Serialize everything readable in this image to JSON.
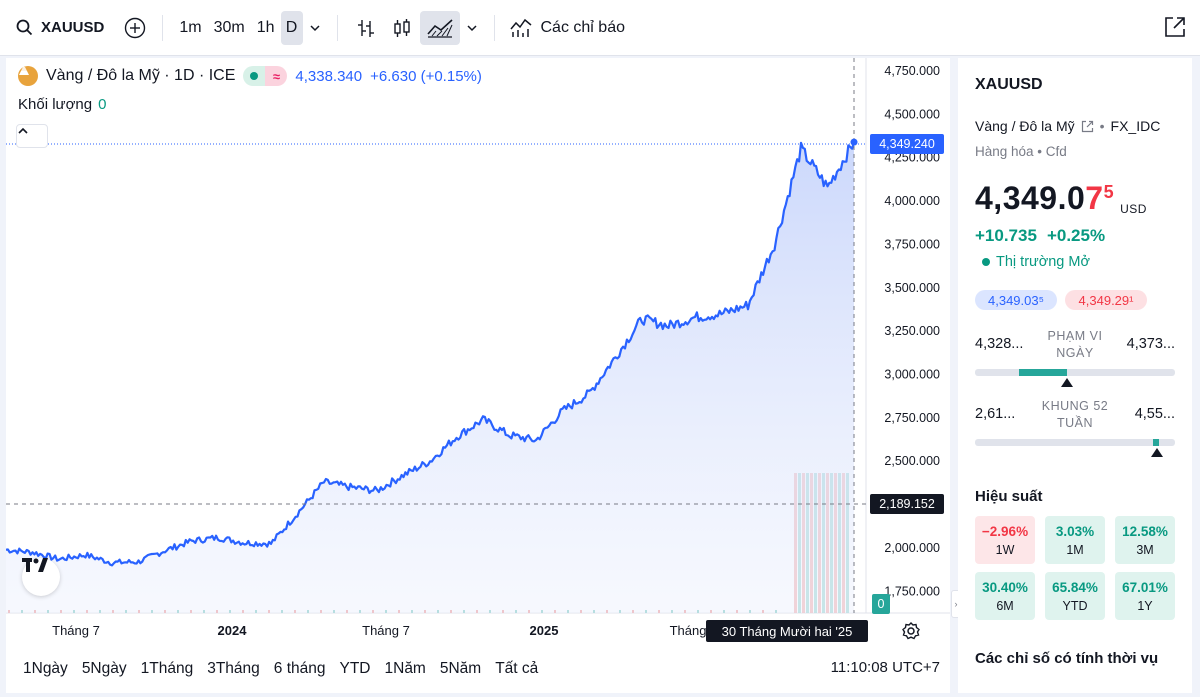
{
  "toolbar": {
    "symbol": "XAUUSD",
    "intervals": [
      "1m",
      "30m",
      "1h",
      "D"
    ],
    "active_interval": "D",
    "indicators_label": "Các chỉ báo"
  },
  "legend": {
    "title": "Vàng / Đô la Mỹ · 1D · ICE",
    "price": "4,338.340",
    "change": "+6.630 (+0.15%)",
    "volume_label": "Khối lượng",
    "volume_value": "0"
  },
  "price_scale": {
    "labels": [
      "4,750.000",
      "4,500.000",
      "4,250.000",
      "4,000.000",
      "3,750.000",
      "3,500.000",
      "3,250.000",
      "3,000.000",
      "2,750.000",
      "2,500.000",
      "2,250.000",
      "2,000.000",
      "1,750.000"
    ],
    "current_tag": "4,349.240",
    "crosshair_tag": "2,189.152",
    "volume_tag": "0"
  },
  "time_axis": {
    "labels": [
      "Tháng 7",
      "2024",
      "Tháng 7",
      "2025",
      "Tháng"
    ],
    "tooltip": "30 Tháng Mười hai '25"
  },
  "chart_data": {
    "type": "area",
    "series": [
      {
        "name": "",
        "x": [
          "2023-04",
          "2023-05",
          "2023-06",
          "2023-07",
          "2023-08",
          "2023-09",
          "2023-10",
          "2023-11",
          "2023-12",
          "2024-01",
          "2024-02",
          "2024-03",
          "2024-04",
          "2024-05",
          "2024-06",
          "2024-07",
          "2024-08",
          "2024-09",
          "2024-10",
          "2024-11",
          "2024-12",
          "2025-01",
          "2025-02",
          "2025-03",
          "2025-04",
          "2025-05",
          "2025-06",
          "2025-07",
          "2025-08",
          "2025-09",
          "2025-10",
          "2025-11",
          "2025-12"
        ],
        "values": [
          1990,
          1975,
          1935,
          1960,
          1915,
          1920,
          1985,
          2040,
          2060,
          2030,
          2025,
          2200,
          2380,
          2350,
          2330,
          2420,
          2500,
          2640,
          2740,
          2650,
          2620,
          2790,
          2890,
          3100,
          3320,
          3280,
          3330,
          3350,
          3400,
          3750,
          4300,
          4080,
          4340
        ]
      }
    ],
    "ylim": [
      1625,
      4825
    ],
    "grid": false,
    "legend": "none"
  },
  "bottom": {
    "ranges": [
      "1Ngày",
      "5Ngày",
      "1Tháng",
      "3Tháng",
      "6 tháng",
      "YTD",
      "1Năm",
      "5Năm",
      "Tất cả"
    ],
    "clock": "11:10:08 UTC+7"
  },
  "right_panel": {
    "symbol": "XAUUSD",
    "description": "Vàng / Đô la Mỹ",
    "exchange": "FX_IDC",
    "category": "Hàng hóa • Cfd",
    "price_main": "4,349.0",
    "price_red": "7",
    "price_sup": "5",
    "currency": "USD",
    "change_abs": "+10.735",
    "change_pct": "+0.25%",
    "market_status": "Thị trường Mở",
    "bid": "4,349.03⁵",
    "ask": "4,349.29¹",
    "day_range": {
      "low": "4,328...",
      "label": "PHẠM VI NGÀY",
      "high": "4,373...",
      "fill_start": 0.22,
      "fill_end": 0.46,
      "marker": 0.46
    },
    "week52_range": {
      "low": "2,61...",
      "label": "KHUNG 52 TUẦN",
      "high": "4,55...",
      "fill_start": 0.89,
      "fill_end": 0.92,
      "marker": 0.91
    },
    "performance_title": "Hiệu suất",
    "performance": [
      {
        "value": "−2.96%",
        "period": "1W",
        "sign": "neg"
      },
      {
        "value": "3.03%",
        "period": "1M",
        "sign": "pos"
      },
      {
        "value": "12.58%",
        "period": "3M",
        "sign": "pos"
      },
      {
        "value": "30.40%",
        "period": "6M",
        "sign": "pos"
      },
      {
        "value": "65.84%",
        "period": "YTD",
        "sign": "pos"
      },
      {
        "value": "67.01%",
        "period": "1Y",
        "sign": "pos"
      }
    ],
    "seasonal_title": "Các chỉ số có tính thời vụ"
  },
  "colors": {
    "line": "#2962ff",
    "area_top": "#c9d6fb",
    "positive": "#089981",
    "negative": "#f23645"
  }
}
